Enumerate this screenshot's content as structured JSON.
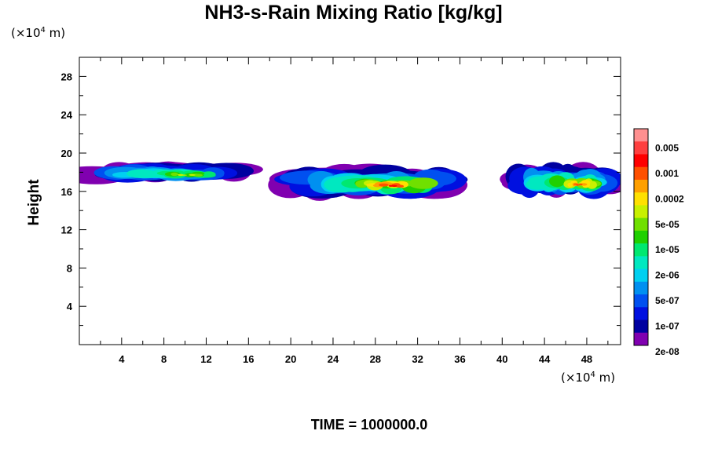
{
  "chart_data": {
    "type": "heatmap",
    "title": "NH3-s-Rain Mixing Ratio [kg/kg]",
    "ylabel": "Height",
    "y_unit": {
      "prefix": "(×10",
      "exp": "4",
      "suffix": " m)"
    },
    "x_unit": {
      "prefix": "(×10",
      "exp": "4",
      "suffix": " m)"
    },
    "xlim": [
      0,
      51.2
    ],
    "ylim": [
      0,
      30
    ],
    "x_ticks": [
      4,
      8,
      12,
      16,
      20,
      24,
      28,
      32,
      36,
      40,
      44,
      48
    ],
    "y_ticks": [
      4,
      8,
      12,
      16,
      20,
      24,
      28
    ],
    "colorbar": {
      "labels": [
        "0.005",
        "0.001",
        "0.0002",
        "5e-05",
        "1e-05",
        "2e-06",
        "5e-07",
        "1e-07",
        "2e-08"
      ],
      "colors_top_to_bottom": [
        "#ff9090",
        "#ff4040",
        "#ff0000",
        "#ff5000",
        "#ffa000",
        "#ffe000",
        "#c8f000",
        "#70e000",
        "#20d000",
        "#00e870",
        "#00e8c0",
        "#00d0f0",
        "#0090f0",
        "#0050f0",
        "#0010e0",
        "#0000a0",
        "#8000b0"
      ]
    },
    "clouds": [
      {
        "x": [
          0,
          16
        ],
        "y": [
          16.8,
          19.6
        ],
        "peak_level": 10
      },
      {
        "x": [
          18.6,
          36.5
        ],
        "y": [
          15.2,
          19.4
        ],
        "peak_level": 14
      },
      {
        "x": [
          40.4,
          51.2
        ],
        "y": [
          15.2,
          19.6
        ],
        "peak_level": 13
      }
    ],
    "grid": false
  },
  "footer": {
    "time_label": "TIME = 1000000.0"
  }
}
